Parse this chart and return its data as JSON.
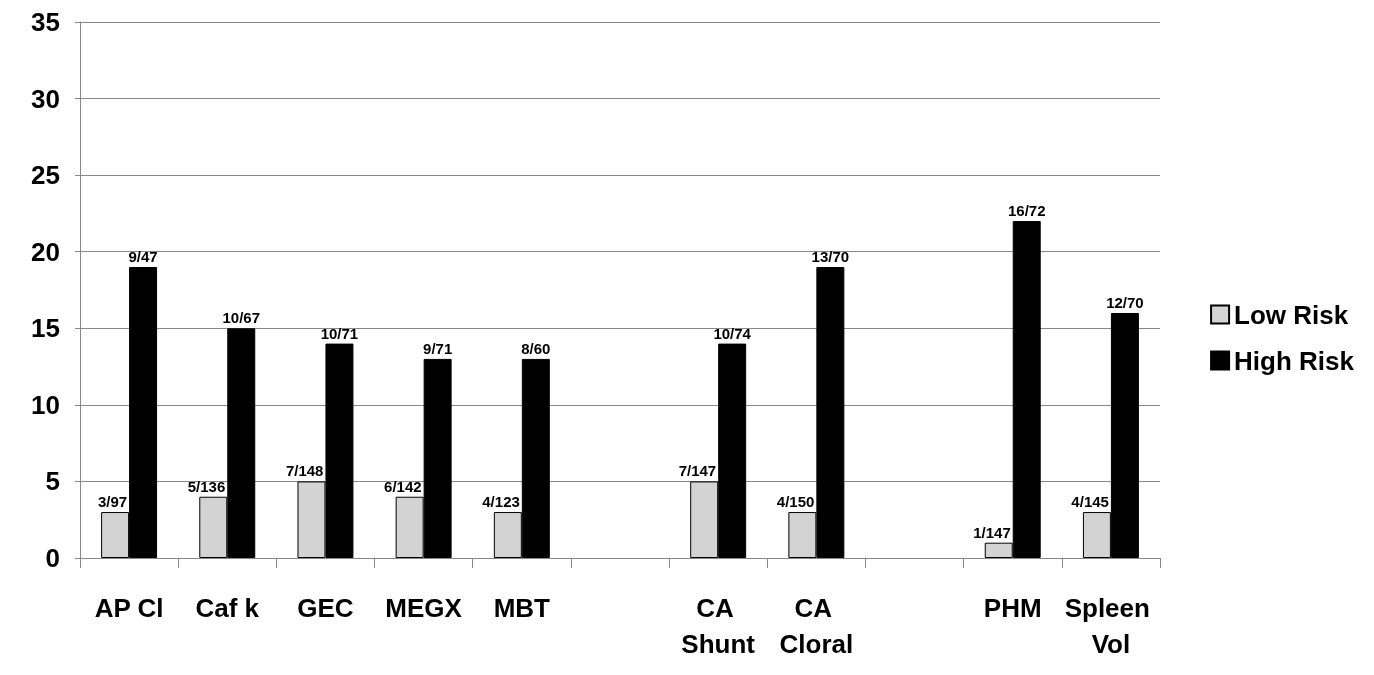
{
  "chart_data": {
    "type": "bar",
    "categories": [
      "AP Cl",
      "Caf k",
      "GEC",
      "MEGX",
      "MBT",
      null,
      "CA Shunt",
      "CA Cloral",
      null,
      "PHM",
      "Spleen Vol"
    ],
    "series": [
      {
        "name": "Low Risk",
        "color": "#d3d3d3",
        "values": [
          3,
          4,
          5,
          4,
          3,
          null,
          5,
          3,
          null,
          1,
          3
        ],
        "value_labels": [
          "3/97",
          "5/136",
          "7/148",
          "6/142",
          "4/123",
          null,
          "7/147",
          "4/150",
          null,
          "1/147",
          "4/145"
        ]
      },
      {
        "name": "High Risk",
        "color": "#000000",
        "values": [
          19,
          15,
          14,
          13,
          13,
          null,
          14,
          19,
          null,
          22,
          16
        ],
        "value_labels": [
          "9/47",
          "10/67",
          "10/71",
          "9/71",
          "8/60",
          null,
          "10/74",
          "13/70",
          null,
          "16/72",
          "12/70"
        ]
      }
    ],
    "ylim": [
      0,
      35
    ],
    "yticks": [
      0,
      5,
      10,
      15,
      20,
      25,
      30,
      35
    ],
    "grid": "y",
    "legend": "right"
  }
}
